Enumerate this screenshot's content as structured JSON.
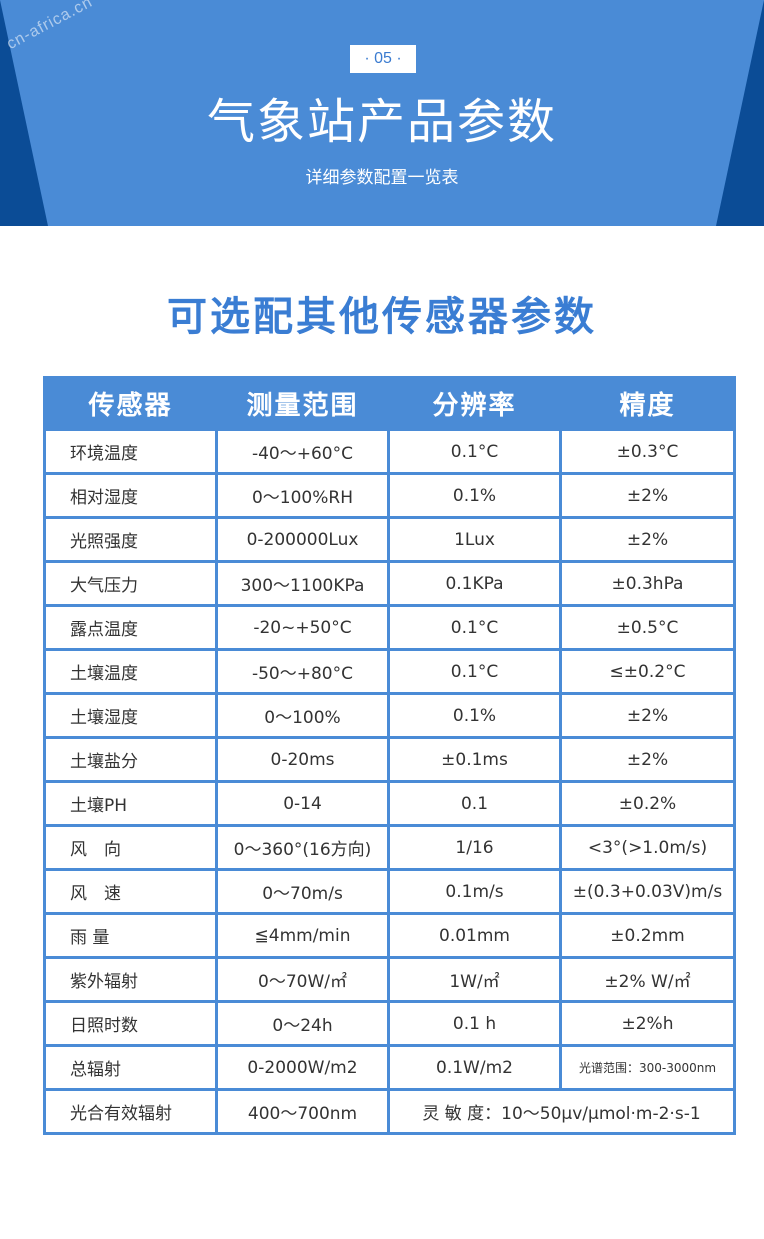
{
  "header": {
    "watermark": "cn-africa.cn",
    "badge": "· 05 ·",
    "title": "气象站产品参数",
    "subtitle": "详细参数配置一览表"
  },
  "section": {
    "title": "可选配其他传感器参数"
  },
  "table": {
    "headers": [
      "传感器",
      "测量范围",
      "分辨率",
      "精度"
    ],
    "rows": [
      [
        "环境温度",
        "-40～+60°C",
        "0.1°C",
        "±0.3°C"
      ],
      [
        "相对湿度",
        "0～100%RH",
        "0.1%",
        "±2%"
      ],
      [
        "光照强度",
        "0-200000Lux",
        "1Lux",
        "±2%"
      ],
      [
        "大气压力",
        "300～1100KPa",
        "0.1KPa",
        "±0.3hPa"
      ],
      [
        "露点温度",
        "-20~+50°C",
        "0.1°C",
        "±0.5°C"
      ],
      [
        "土壤温度",
        "-50～+80°C",
        "0.1°C",
        "≤±0.2°C"
      ],
      [
        "土壤湿度",
        "0～100%",
        "0.1%",
        "±2%"
      ],
      [
        "土壤盐分",
        "0-20ms",
        "±0.1ms",
        "±2%"
      ],
      [
        "土壤PH",
        "0-14",
        "0.1",
        "±0.2%"
      ],
      [
        "风　向",
        "0～360°(16方向)",
        "1/16",
        "<3°(>1.0m/s)"
      ],
      [
        "风　速",
        "0～70m/s",
        "0.1m/s",
        "±(0.3+0.03V)m/s"
      ],
      [
        "雨 量",
        "≦4mm/min",
        "0.01mm",
        "±0.2mm"
      ],
      [
        "紫外辐射",
        "0～70W/㎡",
        "1W/㎡",
        "±2% W/㎡"
      ],
      [
        "日照时数",
        "0～24h",
        "0.1 h",
        "±2%h"
      ],
      [
        "总辐射",
        "0-2000W/m2",
        "0.1W/m2",
        "光谱范围：300-3000nm"
      ]
    ],
    "last_row": {
      "name": "光合有效辐射",
      "range": "400～700nm",
      "merged": "灵 敏 度：10～50μv/μmol·m-2·s-1"
    }
  },
  "colors": {
    "banner": "#4a8bd6",
    "banner_dark": "#0b4c96",
    "accent": "#3a7dd3"
  }
}
